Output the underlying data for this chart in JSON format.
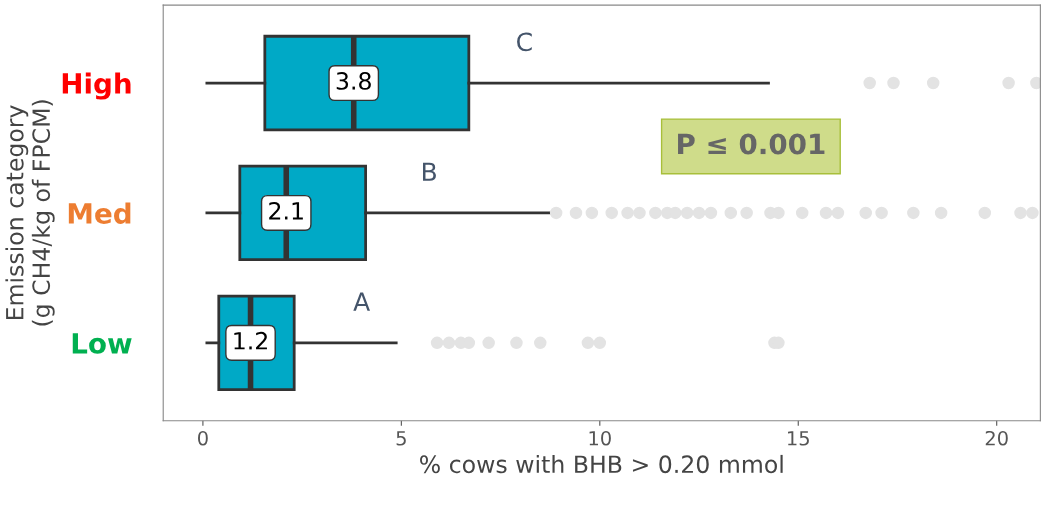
{
  "chart_data": {
    "type": "box",
    "orientation": "horizontal",
    "xlabel": "% cows with BHB > 0.20 mmol",
    "ylabel": "Emission category\n(g CH4/kg of FPCM)",
    "categories": [
      "High",
      "Med",
      "Low"
    ],
    "color": "#00a9c6",
    "boxes": [
      {
        "low": 0.1,
        "q1": 1.56,
        "median": 3.8,
        "q3": 6.7,
        "high": 14.25,
        "outliers": [
          16.8,
          17.4,
          18.4,
          20.3,
          21.0
        ]
      },
      {
        "low": 0.1,
        "q1": 0.93,
        "median": 2.1,
        "q3": 4.1,
        "high": 8.8,
        "outliers": [
          8.9,
          9.4,
          9.8,
          10.3,
          10.7,
          11.0,
          11.4,
          11.7,
          11.9,
          12.2,
          12.5,
          12.8,
          13.3,
          13.7,
          14.3,
          14.5,
          15.1,
          15.7,
          16.0,
          16.7,
          17.1,
          17.9,
          18.6,
          19.7,
          20.6,
          20.9
        ]
      },
      {
        "low": 0.1,
        "q1": 0.4,
        "median": 1.2,
        "q3": 2.3,
        "high": 4.87,
        "outliers": [
          5.9,
          6.2,
          6.5,
          6.7,
          7.2,
          7.9,
          8.5,
          9.7,
          10.0,
          14.4,
          14.5
        ]
      }
    ],
    "xlim": [
      -1,
      21.1
    ],
    "xticks": [
      0,
      5,
      10,
      15,
      20
    ],
    "grid": false,
    "annotations": [
      {
        "text": "3.8",
        "x": 3.8,
        "y": "High"
      },
      {
        "text": "2.1",
        "x": 2.1,
        "y": "Med"
      },
      {
        "text": "1.2",
        "x": 1.2,
        "y": "Low"
      },
      {
        "text": "C",
        "x": 8.1,
        "y": "High"
      },
      {
        "text": "B",
        "x": 5.7,
        "y": "Med"
      },
      {
        "text": "A",
        "x": 4.0,
        "y": "Low"
      },
      "P ≤ 0.001"
    ]
  }
}
